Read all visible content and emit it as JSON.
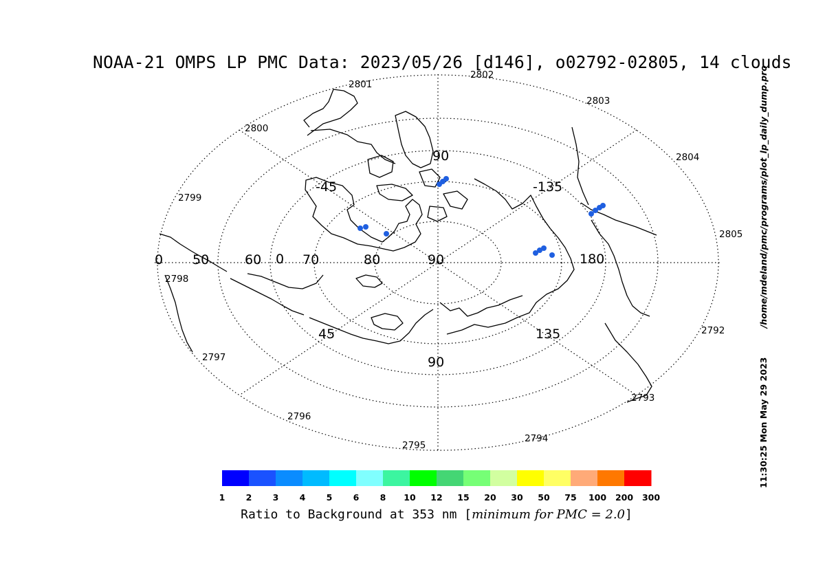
{
  "title": "NOAA-21 OMPS LP PMC Data: 2023/05/26 [d146], o02792-02805, 14 clouds",
  "sidebar": {
    "timestamp": "11:30:25 Mon May 29 2023",
    "path": "/home/mdeland/pmc/programs/plot_lp_daily_dump.pro"
  },
  "map": {
    "projection": "polar orthographic, north pole",
    "grid_style": "dotted",
    "longitude_labels": [
      {
        "id": "lon-90-top",
        "text": "90"
      },
      {
        "id": "lon-neg45",
        "text": "-45"
      },
      {
        "id": "lon-neg135",
        "text": "-135"
      },
      {
        "id": "lon-0",
        "text": "0"
      },
      {
        "id": "lon-180",
        "text": "180"
      },
      {
        "id": "lon-45",
        "text": "45"
      },
      {
        "id": "lon-135",
        "text": "135"
      },
      {
        "id": "lon-90-bottom",
        "text": "90"
      }
    ],
    "latitude_labels": [
      {
        "id": "lat-0",
        "text": "0"
      },
      {
        "id": "lat-50",
        "text": "50"
      },
      {
        "id": "lat-60",
        "text": "60"
      },
      {
        "id": "lat-70",
        "text": "70"
      },
      {
        "id": "lat-80",
        "text": "80"
      },
      {
        "id": "lat-90",
        "text": "90"
      }
    ],
    "orbit_labels": [
      "2792",
      "2793",
      "2794",
      "2795",
      "2796",
      "2797",
      "2798",
      "2799",
      "2800",
      "2801",
      "2802",
      "2803",
      "2804",
      "2805"
    ],
    "clouds": {
      "count": 14,
      "color": "#1f5fe0"
    }
  },
  "colorbar": {
    "title_prefix": "Ratio to Background at 353 nm [",
    "title_italic": "minimum for PMC = 2.0",
    "title_suffix": "]",
    "colors": [
      "#0000ff",
      "#1a52ff",
      "#0a8cff",
      "#00bbff",
      "#00ffff",
      "#80ffff",
      "#3cf5a0",
      "#00ff00",
      "#44d674",
      "#76ff76",
      "#d2ffa0",
      "#ffff00",
      "#ffff64",
      "#ffaa78",
      "#ff7800",
      "#ff0000"
    ],
    "tick_labels": [
      "1",
      "2",
      "3",
      "4",
      "5",
      "6",
      "8",
      "10",
      "12",
      "15",
      "20",
      "30",
      "50",
      "75",
      "100",
      "200",
      "300"
    ]
  }
}
